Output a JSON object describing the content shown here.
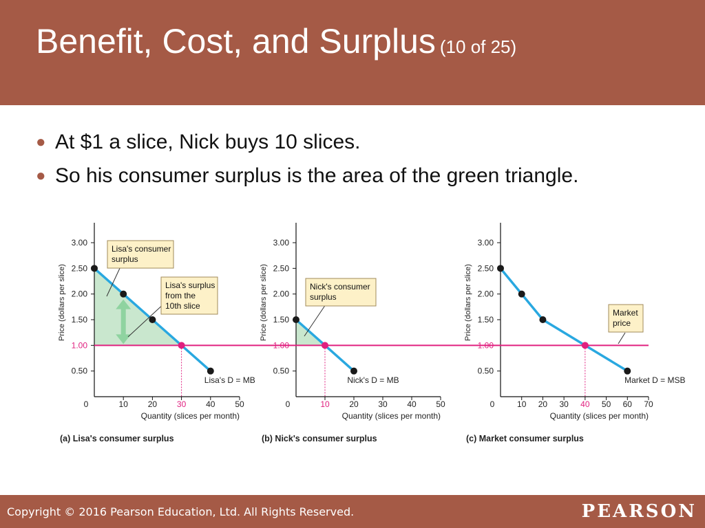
{
  "slide": {
    "title": "Benefit, Cost, and Surplus",
    "title_suffix": "(10 of 25)",
    "bullets": [
      "At $1 a slice, Nick buys 10 slices.",
      "So his consumer surplus is the area of the green triangle."
    ],
    "copyright": "Copyright © 2016 Pearson Education, Ltd. All Rights Reserved.",
    "brand": "PEARSON"
  },
  "colors": {
    "header": "#a55a46",
    "demand_line": "#29a8e0",
    "price_line": "#e0207f",
    "surplus_fill": "#bfe3c6",
    "callout_fill": "#fdf1c8",
    "arrow": "#8fd3a0"
  },
  "chart_data": [
    {
      "type": "line",
      "caption": "(a) Lisa's consumer surplus",
      "ylabel": "Price (dollars per slice)",
      "xlabel": "Quantity (slices per month)",
      "xlim": [
        0,
        50
      ],
      "ylim": [
        0,
        3.25
      ],
      "xticks": [
        0,
        10,
        20,
        30,
        40,
        50
      ],
      "yticks": [
        0.5,
        1.0,
        1.5,
        2.0,
        2.5,
        3.0
      ],
      "ytick_labels": [
        "0.50",
        "1.00",
        "1.50",
        "2.00",
        "2.50",
        "3.00"
      ],
      "series": [
        {
          "name": "Lisa's D = MB",
          "x": [
            0,
            10,
            20,
            30,
            40
          ],
          "y": [
            2.5,
            2.0,
            1.5,
            1.0,
            0.5
          ]
        }
      ],
      "price": 1.0,
      "quantity_at_price": 30,
      "annotations": [
        "Lisa's consumer surplus",
        "Lisa's surplus from the 10th slice"
      ]
    },
    {
      "type": "line",
      "caption": "(b) Nick's consumer surplus",
      "ylabel": "Price (dollars per slice)",
      "xlabel": "Quantity (slices per month)",
      "xlim": [
        0,
        50
      ],
      "ylim": [
        0,
        3.25
      ],
      "xticks": [
        0,
        10,
        20,
        30,
        40,
        50
      ],
      "yticks": [
        0.5,
        1.0,
        1.5,
        2.0,
        2.5,
        3.0
      ],
      "ytick_labels": [
        "0.50",
        "1.00",
        "1.50",
        "2.00",
        "2.50",
        "3.00"
      ],
      "series": [
        {
          "name": "Nick's D = MB",
          "x": [
            0,
            10,
            20
          ],
          "y": [
            1.5,
            1.0,
            0.5
          ]
        }
      ],
      "price": 1.0,
      "quantity_at_price": 10,
      "annotations": [
        "Nick's consumer surplus"
      ]
    },
    {
      "type": "line",
      "caption": "(c) Market consumer surplus",
      "ylabel": "Price (dollars per slice)",
      "xlabel": "Quantity (slices per month)",
      "xlim": [
        0,
        70
      ],
      "ylim": [
        0,
        3.25
      ],
      "xticks": [
        0,
        10,
        20,
        30,
        40,
        50,
        60,
        70
      ],
      "yticks": [
        0.5,
        1.0,
        1.5,
        2.0,
        2.5,
        3.0
      ],
      "ytick_labels": [
        "0.50",
        "1.00",
        "1.50",
        "2.00",
        "2.50",
        "3.00"
      ],
      "series": [
        {
          "name": "Market D = MSB",
          "x": [
            0,
            10,
            20,
            40,
            60
          ],
          "y": [
            2.5,
            2.0,
            1.5,
            1.0,
            0.5
          ]
        }
      ],
      "price": 1.0,
      "quantity_at_price": 40,
      "annotations": [
        "Market price"
      ]
    }
  ]
}
